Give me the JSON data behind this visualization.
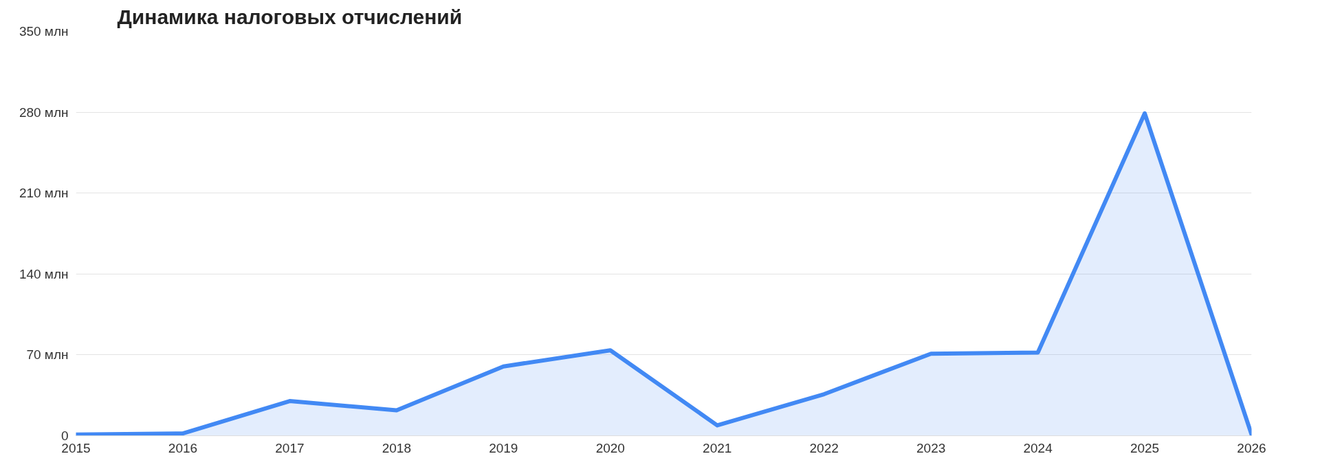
{
  "chart_data": {
    "type": "area",
    "title": "Динамика налоговых отчислений",
    "x": [
      2015,
      2016,
      2017,
      2018,
      2019,
      2020,
      2021,
      2022,
      2023,
      2024,
      2025,
      2026
    ],
    "values": [
      1,
      2,
      30,
      22,
      60,
      74,
      9,
      36,
      71,
      72,
      279,
      1
    ],
    "color": "#4289f4",
    "xlim": [
      2015,
      2026
    ],
    "xticks": [
      2015,
      2016,
      2017,
      2018,
      2019,
      2020,
      2021,
      2022,
      2023,
      2024,
      2025,
      2026
    ],
    "ylim": [
      0,
      350
    ],
    "yticks": [
      0,
      {
        "value": 70,
        "label": "70 млн"
      },
      {
        "value": 140,
        "label": "140 млн"
      },
      {
        "value": 210,
        "label": "210 млн"
      },
      {
        "value": 280,
        "label": "280 млн"
      },
      {
        "value": 350,
        "label": "350 млн"
      }
    ],
    "grid": "y"
  }
}
